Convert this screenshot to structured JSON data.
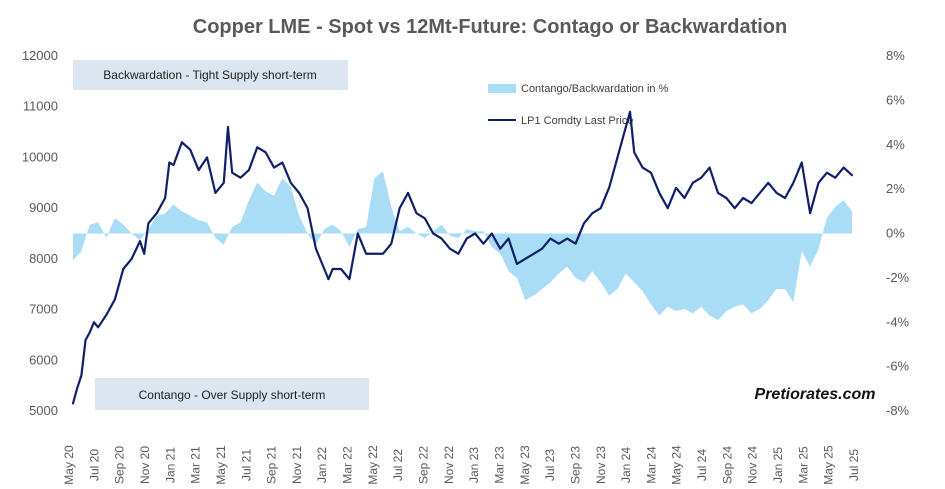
{
  "chart_data": {
    "type": "line",
    "title": "Copper LME - Spot vs 12Mt-Future: Contago or Backwardation",
    "watermark": "Pretiorates.com",
    "annotations": {
      "top": "Backwardation - Tight Supply short-term",
      "bottom": "Contango - Over Supply short-term"
    },
    "legend": {
      "placement": "top-right",
      "entries": [
        "Contango/Backwardation in %",
        "LP1 Comdty Last Price"
      ]
    },
    "grid": false,
    "colors": {
      "area": "#a8ddf5",
      "line": "#101f6a",
      "annotation_box": "#dce6f1",
      "text": "#595959"
    },
    "y_left": {
      "min": 5000,
      "max": 12000,
      "ticks": [
        "12000",
        "11000",
        "10000",
        "9000",
        "8000",
        "7000",
        "6000",
        "5000"
      ]
    },
    "y_right": {
      "min": -8,
      "max": 8,
      "ticks": [
        "8%",
        "6%",
        "4%",
        "2%",
        "0%",
        "-2%",
        "-4%",
        "-6%",
        "-8%"
      ]
    },
    "x_labels": [
      "May 20",
      "Jul 20",
      "Sep 20",
      "Nov 20",
      "Jan 21",
      "Mar 21",
      "May 21",
      "Jul 21",
      "Sep 21",
      "Nov 21",
      "Jan 22",
      "Mar 22",
      "May 22",
      "Jul 22",
      "Sep 22",
      "Nov 22",
      "Jan 23",
      "Mar 23",
      "May 23",
      "Jul 23",
      "Sep 23",
      "Nov 23",
      "Jan 24",
      "Mar 24",
      "May 24",
      "Jul 24",
      "Sep 24",
      "Nov 24",
      "Jan 25",
      "Mar 25",
      "May 25",
      "Jul 25"
    ],
    "series": [
      {
        "name": "LP1 Comdty Last Price",
        "axis": "left",
        "kind": "line",
        "points": [
          [
            0,
            5150
          ],
          [
            0.5,
            5450
          ],
          [
            1,
            5700
          ],
          [
            1.5,
            6400
          ],
          [
            2,
            6550
          ],
          [
            2.5,
            6750
          ],
          [
            3,
            6650
          ],
          [
            4,
            6900
          ],
          [
            5,
            7200
          ],
          [
            6,
            7800
          ],
          [
            7,
            8000
          ],
          [
            8,
            8350
          ],
          [
            8.5,
            8100
          ],
          [
            9,
            8700
          ],
          [
            10,
            8900
          ],
          [
            11,
            9200
          ],
          [
            11.5,
            9900
          ],
          [
            12,
            9850
          ],
          [
            13,
            10300
          ],
          [
            14,
            10150
          ],
          [
            15,
            9750
          ],
          [
            16,
            10000
          ],
          [
            17,
            9300
          ],
          [
            18,
            9500
          ],
          [
            18.5,
            10600
          ],
          [
            19,
            9700
          ],
          [
            20,
            9600
          ],
          [
            21,
            9750
          ],
          [
            22,
            10200
          ],
          [
            23,
            10100
          ],
          [
            24,
            9800
          ],
          [
            25,
            9900
          ],
          [
            26,
            9500
          ],
          [
            27,
            9300
          ],
          [
            28,
            9000
          ],
          [
            29,
            8200
          ],
          [
            30,
            7800
          ],
          [
            30.5,
            7600
          ],
          [
            31,
            7800
          ],
          [
            32,
            7800
          ],
          [
            33,
            7600
          ],
          [
            34,
            8500
          ],
          [
            35,
            8100
          ],
          [
            36,
            8100
          ],
          [
            37,
            8100
          ],
          [
            38,
            8300
          ],
          [
            39,
            9000
          ],
          [
            40,
            9300
          ],
          [
            41,
            8900
          ],
          [
            42,
            8800
          ],
          [
            43,
            8500
          ],
          [
            44,
            8400
          ],
          [
            45,
            8200
          ],
          [
            46,
            8100
          ],
          [
            47,
            8400
          ],
          [
            48,
            8500
          ],
          [
            49,
            8300
          ],
          [
            50,
            8500
          ],
          [
            51,
            8200
          ],
          [
            52,
            8400
          ],
          [
            53,
            7900
          ],
          [
            54,
            8000
          ],
          [
            55,
            8100
          ],
          [
            56,
            8200
          ],
          [
            57,
            8400
          ],
          [
            58,
            8300
          ],
          [
            59,
            8400
          ],
          [
            60,
            8300
          ],
          [
            61,
            8700
          ],
          [
            62,
            8900
          ],
          [
            63,
            9000
          ],
          [
            64,
            9400
          ],
          [
            65,
            10000
          ],
          [
            66,
            10600
          ],
          [
            66.5,
            10900
          ],
          [
            67,
            10100
          ],
          [
            68,
            9800
          ],
          [
            69,
            9700
          ],
          [
            70,
            9300
          ],
          [
            71,
            9000
          ],
          [
            72,
            9400
          ],
          [
            73,
            9200
          ],
          [
            74,
            9500
          ],
          [
            75,
            9600
          ],
          [
            76,
            9800
          ],
          [
            77,
            9300
          ],
          [
            78,
            9200
          ],
          [
            79,
            9000
          ],
          [
            80,
            9200
          ],
          [
            81,
            9100
          ],
          [
            82,
            9300
          ],
          [
            83,
            9500
          ],
          [
            84,
            9300
          ],
          [
            85,
            9200
          ],
          [
            86,
            9500
          ],
          [
            87,
            9900
          ],
          [
            88,
            8900
          ],
          [
            89,
            9500
          ],
          [
            90,
            9700
          ],
          [
            91,
            9600
          ],
          [
            92,
            9800
          ],
          [
            93,
            9650
          ]
        ]
      },
      {
        "name": "Contango/Backwardation in %",
        "axis": "right",
        "kind": "area",
        "points": [
          [
            0,
            -1.2
          ],
          [
            1,
            -0.8
          ],
          [
            2,
            0.4
          ],
          [
            3,
            0.5
          ],
          [
            4,
            -0.2
          ],
          [
            5,
            0.7
          ],
          [
            6,
            0.4
          ],
          [
            7,
            0.0
          ],
          [
            8,
            -0.3
          ],
          [
            9,
            0.2
          ],
          [
            10,
            0.8
          ],
          [
            11,
            0.9
          ],
          [
            12,
            1.3
          ],
          [
            13,
            1.0
          ],
          [
            14,
            0.8
          ],
          [
            15,
            0.6
          ],
          [
            16,
            0.5
          ],
          [
            17,
            -0.2
          ],
          [
            18,
            -0.5
          ],
          [
            19,
            0.3
          ],
          [
            20,
            0.5
          ],
          [
            21,
            1.5
          ],
          [
            22,
            2.3
          ],
          [
            23,
            1.9
          ],
          [
            24,
            1.7
          ],
          [
            25,
            2.5
          ],
          [
            26,
            2.1
          ],
          [
            27,
            0.8
          ],
          [
            28,
            0.0
          ],
          [
            29,
            -0.5
          ],
          [
            30,
            0.2
          ],
          [
            31,
            0.4
          ],
          [
            32,
            0.1
          ],
          [
            33,
            -0.6
          ],
          [
            34,
            0.2
          ],
          [
            35,
            0.3
          ],
          [
            36,
            2.5
          ],
          [
            37,
            2.8
          ],
          [
            38,
            1.2
          ],
          [
            39,
            0.1
          ],
          [
            40,
            0.3
          ],
          [
            41,
            0.0
          ],
          [
            42,
            -0.2
          ],
          [
            43,
            0.1
          ],
          [
            44,
            0.4
          ],
          [
            45,
            -0.1
          ],
          [
            46,
            -0.2
          ],
          [
            47,
            0.2
          ],
          [
            48,
            0.1
          ],
          [
            49,
            0.1
          ],
          [
            50,
            -0.6
          ],
          [
            51,
            -0.9
          ],
          [
            52,
            -1.7
          ],
          [
            53,
            -2.0
          ],
          [
            54,
            -3.0
          ],
          [
            55,
            -2.8
          ],
          [
            56,
            -2.5
          ],
          [
            57,
            -2.2
          ],
          [
            58,
            -1.8
          ],
          [
            59,
            -1.5
          ],
          [
            60,
            -2.0
          ],
          [
            61,
            -2.2
          ],
          [
            62,
            -1.7
          ],
          [
            63,
            -2.2
          ],
          [
            64,
            -2.8
          ],
          [
            65,
            -2.5
          ],
          [
            66,
            -1.8
          ],
          [
            67,
            -2.2
          ],
          [
            68,
            -2.6
          ],
          [
            69,
            -3.2
          ],
          [
            70,
            -3.7
          ],
          [
            71,
            -3.3
          ],
          [
            72,
            -3.5
          ],
          [
            73,
            -3.4
          ],
          [
            74,
            -3.6
          ],
          [
            75,
            -3.3
          ],
          [
            76,
            -3.7
          ],
          [
            77,
            -3.9
          ],
          [
            78,
            -3.5
          ],
          [
            79,
            -3.3
          ],
          [
            80,
            -3.2
          ],
          [
            81,
            -3.6
          ],
          [
            82,
            -3.4
          ],
          [
            83,
            -3.0
          ],
          [
            84,
            -2.5
          ],
          [
            85,
            -2.5
          ],
          [
            86,
            -3.1
          ],
          [
            87,
            -0.8
          ],
          [
            88,
            -1.5
          ],
          [
            89,
            -0.7
          ],
          [
            90,
            0.7
          ],
          [
            91,
            1.2
          ],
          [
            92,
            1.5
          ],
          [
            93,
            1.0
          ]
        ]
      }
    ]
  }
}
